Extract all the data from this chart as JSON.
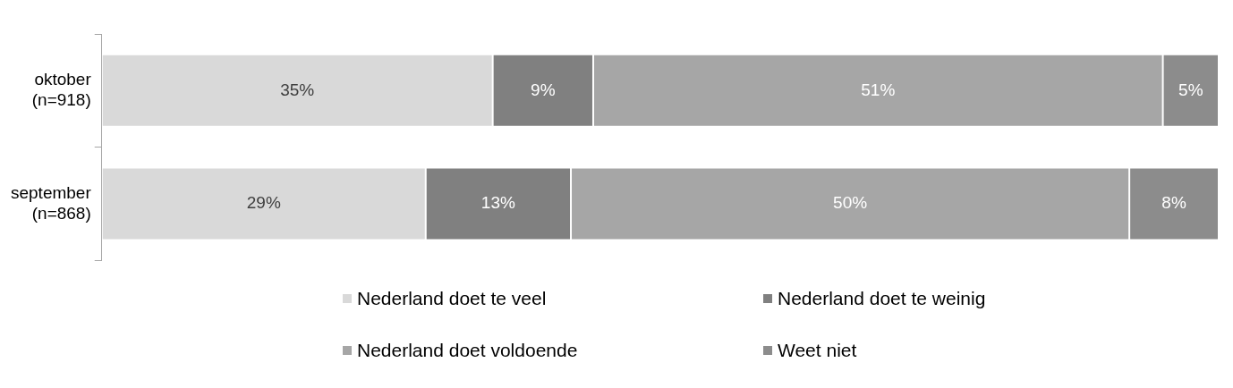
{
  "chart_data": {
    "type": "bar",
    "orientation": "horizontal",
    "stacked": true,
    "categories": [
      "oktober (n=918)",
      "september (n=868)"
    ],
    "series": [
      {
        "name": "Nederland doet te veel",
        "color": "#d9d9d9",
        "values": [
          35,
          29
        ],
        "value_labels": [
          "35%",
          "29%"
        ]
      },
      {
        "name": "Nederland doet te weinig",
        "color": "#808080",
        "values": [
          9,
          13
        ],
        "value_labels": [
          "9%",
          "13%"
        ]
      },
      {
        "name": "Nederland doet voldoende",
        "color": "#a6a6a6",
        "values": [
          51,
          50
        ],
        "value_labels": [
          "51%",
          "50%"
        ]
      },
      {
        "name": "Weet niet",
        "color": "#8c8c8c",
        "values": [
          5,
          8
        ],
        "value_labels": [
          "5%",
          "8%"
        ]
      }
    ],
    "xlim": [
      0,
      100
    ],
    "tick_labels": "y",
    "grid": false,
    "legend": "bottom"
  }
}
